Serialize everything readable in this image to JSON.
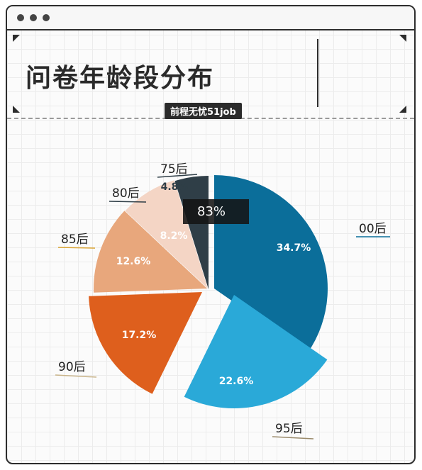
{
  "window": {
    "title": "问卷年龄段分布",
    "source": "前程无忧51job"
  },
  "tooltip": {
    "text": "83%"
  },
  "colors": {
    "00后": "#0b6e9a",
    "95后": "#2aa9d8",
    "90后": "#de5f1d",
    "85后": "#e8a77c",
    "80后": "#f4d5c5",
    "75后": "#2f3e47"
  },
  "chart_data": {
    "type": "pie",
    "title": "问卷年龄段分布",
    "labels": [
      "00后",
      "95后",
      "90后",
      "85后",
      "80后",
      "75后"
    ],
    "values": [
      34.7,
      22.6,
      17.2,
      12.6,
      8.2,
      4.8
    ],
    "value_labels": [
      "34.7%",
      "22.6%",
      "17.2%",
      "12.6%",
      "8.2%",
      "4.8%"
    ],
    "exploded": [
      "00后",
      "95后"
    ]
  }
}
